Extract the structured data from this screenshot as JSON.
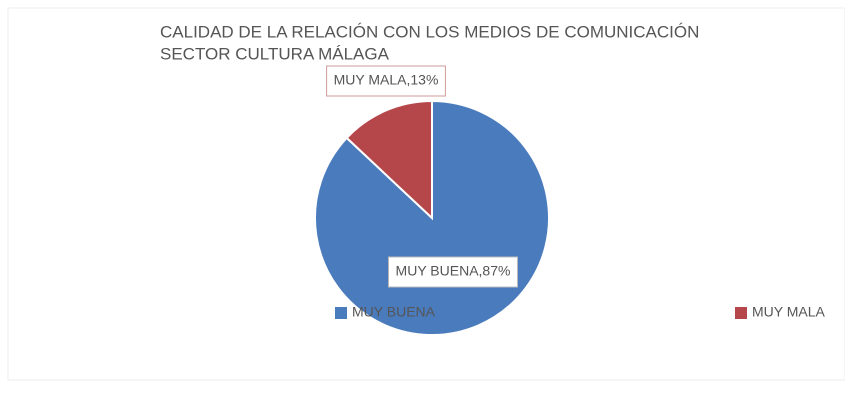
{
  "chart_data": {
    "type": "pie",
    "title": [
      "CALIDAD DE LA RELACIÓN CON LOS MEDIOS DE COMUNICACIÓN",
      "SECTOR CULTURA MÁLAGA"
    ],
    "categories": [
      "MUY BUENA",
      "MUY MALA"
    ],
    "values": [
      87,
      13
    ],
    "value_labels": [
      "MUY BUENA,87%",
      "MUY MALA,13%"
    ],
    "colors": [
      "#4a7bbd",
      "#b5474b"
    ],
    "legend": "bottom"
  }
}
